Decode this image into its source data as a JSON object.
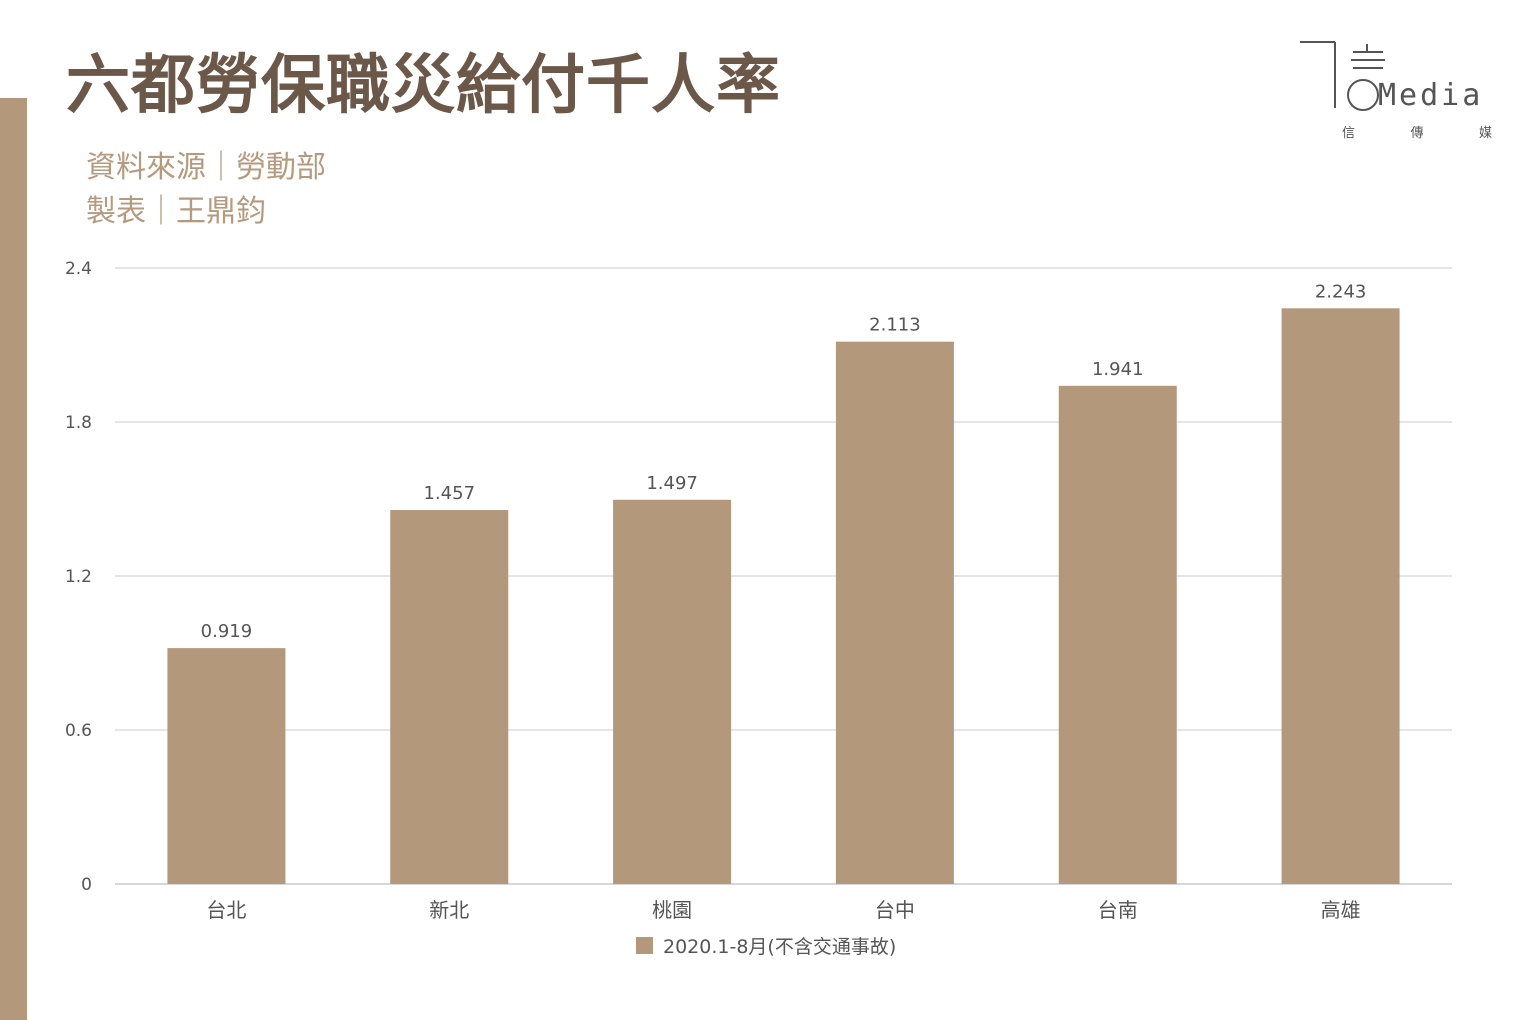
{
  "header": {
    "title": "六都勞保職災給付千人率",
    "source_line": "資料來源｜勞動部",
    "author_line": "製表｜王鼎鈞"
  },
  "logo": {
    "word": "Media",
    "chinese": [
      "信",
      "傳",
      "媒"
    ]
  },
  "colors": {
    "bar": "#b3987c",
    "title": "#6b5848",
    "subtitle": "#b69a7d",
    "grid": "#dcdce4",
    "axis_text": "#555555"
  },
  "chart_data": {
    "type": "bar",
    "categories": [
      "台北",
      "新北",
      "桃園",
      "台中",
      "台南",
      "高雄"
    ],
    "series": [
      {
        "name": "2020.1-8月(不含交通事故)",
        "values": [
          0.919,
          1.457,
          1.497,
          2.113,
          1.941,
          2.243
        ]
      }
    ],
    "data_labels": [
      "0.919",
      "1.457",
      "1.497",
      "2.113",
      "1.941",
      "2.243"
    ],
    "yticks": [
      "0",
      "0.6",
      "1.2",
      "1.8",
      "2.4"
    ],
    "ytick_values": [
      0,
      0.6,
      1.2,
      1.8,
      2.4
    ],
    "ylim": [
      0,
      2.4
    ],
    "grid": true,
    "legend_position": "bottom"
  }
}
